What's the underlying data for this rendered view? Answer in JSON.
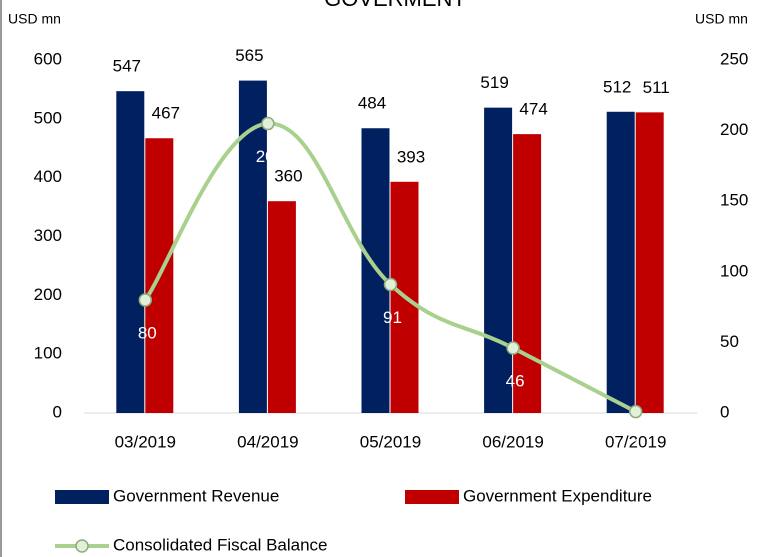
{
  "chart_data": {
    "type": "bar-line",
    "title": "GOVERMENT",
    "y_label": "USD mn",
    "y2_label": "USD mn",
    "categories": [
      "03/2019",
      "04/2019",
      "05/2019",
      "06/2019",
      "07/2019"
    ],
    "series": [
      {
        "name": "Government Revenue",
        "color": "#002060",
        "type": "bar",
        "values": [
          547,
          565,
          484,
          519,
          512
        ]
      },
      {
        "name": "Government Expenditure",
        "color": "#c00000",
        "type": "bar",
        "values": [
          467,
          360,
          393,
          474,
          511
        ]
      },
      {
        "name": "Consolidated Fiscal Balance",
        "color": "#a9d18e",
        "type": "line",
        "axis": "y2",
        "values": [
          80,
          205,
          91,
          46,
          1
        ]
      }
    ],
    "ylim": [
      0,
      600
    ],
    "yticks": [
      0,
      100,
      200,
      300,
      400,
      500,
      600
    ],
    "y2lim": [
      0,
      250
    ],
    "y2ticks": [
      0,
      50,
      100,
      150,
      200,
      250
    ],
    "grid": false,
    "legend": "bottom"
  }
}
